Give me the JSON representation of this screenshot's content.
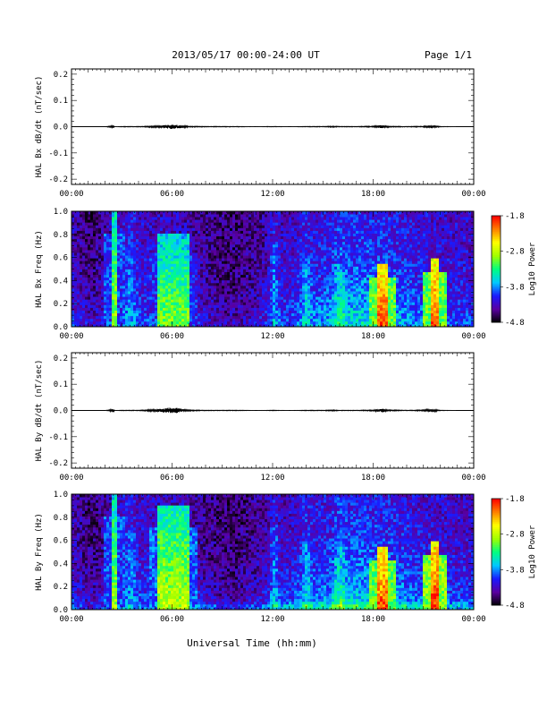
{
  "header": {
    "date_range": "2013/05/17  00:00-24:00 UT",
    "page": "Page 1/1"
  },
  "x_axis": {
    "label": "Universal Time (hh:mm)",
    "tick_labels": [
      "00:00",
      "06:00",
      "12:00",
      "18:00",
      "00:00"
    ]
  },
  "colorbar": {
    "label": "Log10 Power",
    "tick_labels": [
      "-1.8",
      "-2.8",
      "-3.8",
      "-4.8"
    ],
    "range": [
      -4.8,
      -1.8
    ],
    "colormap": [
      "#000000",
      "#5a00a0",
      "#1a1aff",
      "#00c8ff",
      "#00ff80",
      "#a0ff00",
      "#ffff00",
      "#ff8000",
      "#ff0000"
    ]
  },
  "chart_data": [
    {
      "type": "line",
      "title": "",
      "ylabel": "HAL Bx dB/dt (nT/sec)",
      "xlabel": "",
      "xlim": [
        0,
        24
      ],
      "ylim": [
        -0.22,
        0.22
      ],
      "y_tick_labels": [
        "0.2",
        "0.1",
        "0.0",
        "-0.1",
        "-0.2"
      ],
      "grid": false,
      "series": [
        {
          "x": [
            0,
            1,
            2,
            2.5,
            2.6,
            3,
            4,
            5,
            5.5,
            6,
            6.3,
            6.6,
            7,
            8,
            9,
            10,
            11,
            12,
            13,
            14,
            15,
            15.5,
            16,
            17,
            18,
            18.5,
            19,
            20,
            21,
            21.5,
            22,
            23,
            24
          ],
          "y": [
            0.0,
            0.0,
            0.0,
            0.004,
            0.0,
            0.001,
            0.001,
            0.003,
            0.005,
            0.007,
            0.006,
            0.004,
            0.002,
            0.001,
            0.001,
            0.001,
            0.0,
            0.001,
            0.0,
            0.001,
            0.001,
            0.002,
            0.001,
            0.001,
            0.002,
            0.005,
            0.002,
            0.001,
            0.002,
            0.005,
            0.001,
            0.0,
            0.0
          ]
        }
      ]
    },
    {
      "type": "heatmap",
      "title": "",
      "ylabel": "HAL Bx Freq (Hz)",
      "xlabel": "",
      "xlim": [
        0,
        24
      ],
      "ylim": [
        0,
        1.0
      ],
      "y_tick_labels": [
        "1.0",
        "0.8",
        "0.6",
        "0.4",
        "0.2",
        "0.0"
      ],
      "value_range": [
        -4.8,
        -1.8
      ],
      "features": [
        {
          "t_start": 2.4,
          "t_end": 2.6,
          "f_max": 1.0,
          "log_power": -2.9
        },
        {
          "t_start": 5.2,
          "t_end": 7.0,
          "f_max": 0.8,
          "log_power": -3.0
        },
        {
          "t_start": 18.3,
          "t_end": 18.8,
          "f_max": 0.55,
          "log_power": -2.0
        },
        {
          "t_start": 21.5,
          "t_end": 21.9,
          "f_max": 0.6,
          "log_power": -2.0
        }
      ]
    },
    {
      "type": "line",
      "title": "",
      "ylabel": "HAL By dB/dt (nT/sec)",
      "xlabel": "",
      "xlim": [
        0,
        24
      ],
      "ylim": [
        -0.22,
        0.22
      ],
      "y_tick_labels": [
        "0.2",
        "0.1",
        "0.0",
        "-0.1",
        "-0.2"
      ],
      "grid": false,
      "series": [
        {
          "x": [
            0,
            1,
            2,
            2.5,
            2.6,
            3,
            4,
            5,
            5.5,
            6,
            6.3,
            6.6,
            7,
            8,
            9,
            10,
            11,
            12,
            13,
            14,
            15,
            15.5,
            16,
            17,
            18,
            18.5,
            19,
            20,
            21,
            21.5,
            22,
            23,
            24
          ],
          "y": [
            0.0,
            0.0,
            0.0,
            0.005,
            0.0,
            0.001,
            0.001,
            0.004,
            0.007,
            0.01,
            0.008,
            0.005,
            0.002,
            0.001,
            0.001,
            0.001,
            0.0,
            0.001,
            0.0,
            0.001,
            0.001,
            0.002,
            0.001,
            0.001,
            0.002,
            0.006,
            0.002,
            0.001,
            0.002,
            0.005,
            0.001,
            0.0,
            0.0
          ]
        }
      ]
    },
    {
      "type": "heatmap",
      "title": "",
      "ylabel": "HAL By Freq (Hz)",
      "xlabel": "",
      "xlim": [
        0,
        24
      ],
      "ylim": [
        0,
        1.0
      ],
      "y_tick_labels": [
        "1.0",
        "0.8",
        "0.6",
        "0.4",
        "0.2",
        "0.0"
      ],
      "value_range": [
        -4.8,
        -1.8
      ],
      "features": [
        {
          "t_start": 2.4,
          "t_end": 2.6,
          "f_max": 1.0,
          "log_power": -2.9
        },
        {
          "t_start": 5.2,
          "t_end": 7.0,
          "f_max": 0.9,
          "log_power": -2.8
        },
        {
          "t_start": 18.3,
          "t_end": 18.8,
          "f_max": 0.55,
          "log_power": -2.0
        },
        {
          "t_start": 21.5,
          "t_end": 21.9,
          "f_max": 0.6,
          "log_power": -1.9
        }
      ]
    }
  ]
}
